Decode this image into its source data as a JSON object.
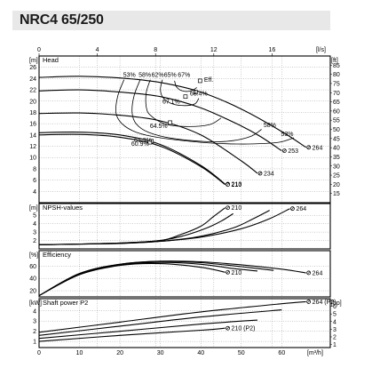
{
  "title": "NRC4 65/250",
  "chart_data": {
    "type": "line",
    "x_top": {
      "unit": "[l/s]",
      "ticks": [
        "0",
        "4",
        "8",
        "12",
        "16"
      ],
      "range": [
        0,
        20
      ]
    },
    "x_bottom": {
      "unit": "[m³/h]",
      "ticks": [
        "0",
        "10",
        "20",
        "30",
        "40",
        "50",
        "60"
      ],
      "range": [
        0,
        72
      ]
    },
    "panels": [
      {
        "id": "head",
        "title": "Head",
        "left_unit": "[m]",
        "right_unit": "[ft]",
        "y_range": [
          2,
          28
        ],
        "left_ticks": [
          "4",
          "6",
          "8",
          "10",
          "12",
          "14",
          "16",
          "18",
          "20",
          "22",
          "24",
          "26"
        ],
        "left_tick_values": [
          4,
          6,
          8,
          10,
          12,
          14,
          16,
          18,
          20,
          22,
          24,
          26
        ],
        "right_range": [
          10,
          90
        ],
        "right_ticks": [
          "15",
          "20",
          "25",
          "30",
          "35",
          "40",
          "45",
          "50",
          "55",
          "60",
          "65",
          "70",
          "75",
          "80",
          "85"
        ],
        "right_tick_values": [
          15,
          20,
          25,
          30,
          35,
          40,
          45,
          50,
          55,
          60,
          65,
          70,
          75,
          80,
          85
        ],
        "series": [
          {
            "name": "264",
            "x": [
              0,
              10,
              20,
              30,
              40,
              50,
              60,
              66
            ],
            "y": [
              24.2,
              24.4,
              24.1,
              23.3,
              21.6,
              18.6,
              14.6,
              11.8
            ]
          },
          {
            "name": "253",
            "x": [
              0,
              10,
              20,
              30,
              40,
              50,
              55,
              60
            ],
            "y": [
              21.8,
              22.0,
              21.6,
              20.8,
              18.8,
              15.6,
              13.6,
              11.2
            ]
          },
          {
            "name": "234",
            "x": [
              0,
              10,
              20,
              30,
              40,
              50,
              54
            ],
            "y": [
              17.8,
              17.9,
              17.5,
              16.5,
              14.0,
              9.4,
              7.2
            ]
          },
          {
            "name": "213",
            "x": [
              0,
              10,
              20,
              30,
              40,
              46
            ],
            "y": [
              14.4,
              14.5,
              14.0,
              12.3,
              8.6,
              5.3
            ]
          },
          {
            "name": "210",
            "x": [
              0,
              10,
              20,
              30,
              40,
              46
            ],
            "y": [
              14.0,
              14.1,
              13.6,
              12.0,
              8.4,
              5.2
            ]
          }
        ],
        "efficiency_contours": [
          {
            "label": "53%",
            "x": [
              21,
              19.5,
              19,
              20.5,
              24,
              30,
              40,
              49,
              56,
              60,
              63
            ],
            "y": [
              23.8,
              21,
              18,
              16,
              14.5,
              13.5,
              12.7,
              12.4,
              12.5,
              12.8,
              13.5
            ]
          },
          {
            "label": "58%",
            "x": [
              25,
              23.5,
              23,
              24,
              27,
              33,
              42,
              48,
              52.5,
              55
            ],
            "y": [
              23.8,
              21,
              18,
              16,
              14.5,
              13.4,
              12.8,
              13,
              13.8,
              15
            ]
          },
          {
            "label": "62%",
            "x": [
              27.5,
              26.5,
              26.5,
              27.5,
              31,
              36,
              42,
              45
            ],
            "y": [
              23.8,
              21.5,
              19,
              17.5,
              16,
              15.5,
              15.8,
              17
            ]
          },
          {
            "label": "65%",
            "x": [
              30.5,
              30,
              30.8,
              33,
              36,
              38.5,
              39.5
            ],
            "y": [
              23.8,
              22,
              20.5,
              19.5,
              19.2,
              19.5,
              20.5
            ]
          },
          {
            "label": "67%",
            "x": [
              33.5,
              34,
              35.5,
              37.5,
              39
            ],
            "y": [
              23.6,
              22.5,
              21.8,
              21.8,
              22.4
            ]
          }
        ],
        "bep_markers": [
          {
            "label": "67.1%",
            "x": 36.2,
            "y": 20.8
          },
          {
            "label": "64.5%",
            "x": 32.4,
            "y": 16.2
          },
          {
            "label": "68.4%",
            "x": 38.7,
            "y": 21.6
          },
          {
            "label": "Eff.",
            "x": 39.8,
            "y": 23.6
          },
          {
            "label": "61.3%",
            "x": 27.8,
            "y": 12.9
          },
          {
            "label": "60.9%",
            "x": 27.4,
            "y": 12.7
          }
        ],
        "labels": [
          "53%",
          "58%",
          "62%",
          "65%",
          "67%",
          "58%",
          "53%",
          "Eff.",
          "68.4%",
          "67.1%",
          "64.5%",
          "61.3%",
          "60.9%"
        ]
      },
      {
        "id": "npsh",
        "title": "NPSH-values",
        "left_unit": "[m]",
        "y_range": [
          1,
          6.4
        ],
        "left_ticks": [
          "2",
          "3",
          "4",
          "5"
        ],
        "left_tick_values": [
          2,
          3,
          4,
          5
        ],
        "series": [
          {
            "name": "264",
            "x": [
              0,
              20,
              30,
              40,
              50,
              57,
              62
            ],
            "y": [
              1.5,
              1.65,
              1.9,
              2.4,
              3.4,
              4.6,
              5.8
            ]
          },
          {
            "name": "",
            "x": [
              0,
              20,
              30,
              40,
              48,
              53,
              57
            ],
            "y": [
              1.5,
              1.65,
              1.9,
              2.5,
              3.5,
              4.6,
              5.6
            ]
          },
          {
            "name": "",
            "x": [
              0,
              20,
              30,
              36,
              41,
              45,
              48
            ],
            "y": [
              1.5,
              1.7,
              2.0,
              2.6,
              3.4,
              4.3,
              5.2
            ]
          },
          {
            "name": "210",
            "x": [
              0,
              20,
              30,
              35,
              40,
              43,
              46
            ],
            "y": [
              1.5,
              1.7,
              2.0,
              2.7,
              3.7,
              4.8,
              5.9
            ]
          }
        ]
      },
      {
        "id": "efficiency",
        "title": "Efficiency",
        "left_unit": "[%]",
        "y_range": [
          10,
          85
        ],
        "left_ticks": [
          "20",
          "40",
          "60"
        ],
        "left_tick_values": [
          20,
          40,
          60
        ],
        "series": [
          {
            "name": "264",
            "x": [
              0,
              10,
              20,
              30,
              40,
              50,
              60,
              66
            ],
            "y": [
              12,
              48,
              63,
              68,
              67,
              62,
              55,
              49
            ]
          },
          {
            "name": "",
            "x": [
              0,
              10,
              20,
              30,
              40,
              50,
              58
            ],
            "y": [
              12,
              48,
              63,
              67.5,
              65.5,
              59,
              53
            ]
          },
          {
            "name": "",
            "x": [
              0,
              10,
              20,
              30,
              40,
              48,
              54
            ],
            "y": [
              12,
              47,
              62,
              66,
              63,
              56,
              52
            ]
          },
          {
            "name": "210",
            "x": [
              0,
              10,
              20,
              30,
              40,
              46
            ],
            "y": [
              12,
              46,
              61,
              64,
              58,
              50
            ]
          }
        ]
      },
      {
        "id": "power",
        "title": "Shaft power P2",
        "left_unit": "[kW]",
        "right_unit": "[hp]",
        "y_range": [
          0.4,
          5.2
        ],
        "left_ticks": [
          "1",
          "2",
          "3",
          "4"
        ],
        "left_tick_values": [
          1,
          2,
          3,
          4
        ],
        "right_range": [
          0.6,
          7
        ],
        "right_ticks": [
          "1",
          "2",
          "3",
          "4",
          "5",
          "6"
        ],
        "right_tick_values": [
          1,
          2,
          3,
          4,
          5,
          6
        ],
        "series": [
          {
            "name": "264 (P2)",
            "x": [
              0,
              20,
              40,
              60,
              66
            ],
            "y": [
              1.9,
              2.9,
              3.9,
              4.7,
              4.9
            ]
          },
          {
            "name": "",
            "x": [
              0,
              20,
              40,
              60
            ],
            "y": [
              1.6,
              2.5,
              3.4,
              4.1
            ]
          },
          {
            "name": "",
            "x": [
              0,
              20,
              40,
              54
            ],
            "y": [
              1.3,
              2.0,
              2.7,
              3.1
            ]
          },
          {
            "name": "210 (P2)",
            "x": [
              0,
              20,
              40,
              46
            ],
            "y": [
              1.0,
              1.6,
              2.1,
              2.3
            ]
          }
        ]
      }
    ]
  }
}
